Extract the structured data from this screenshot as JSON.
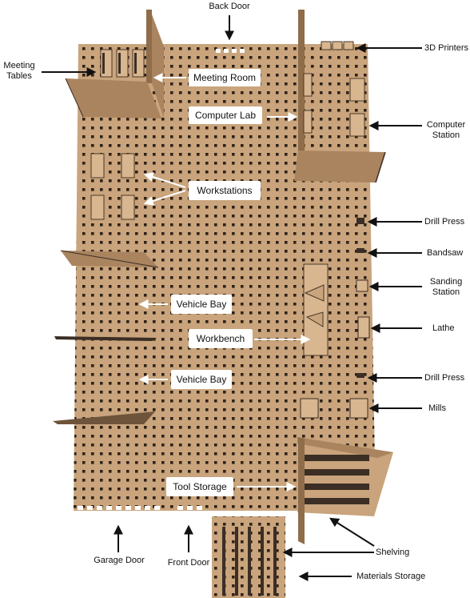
{
  "labels": {
    "back_door": "Back Door",
    "printers_3d": "3D Printers",
    "meeting_tables_line1": "Meeting",
    "meeting_tables_line2": "Tables",
    "computer_station_line1": "Computer",
    "computer_station_line2": "Station",
    "drill_press_top": "Drill Press",
    "bandsaw": "Bandsaw",
    "sanding_line1": "Sanding",
    "sanding_line2": "Station",
    "lathe": "Lathe",
    "drill_press_bottom": "Drill Press",
    "mills": "Mills",
    "shelving": "Shelving",
    "materials_storage": "Materials Storage",
    "garage_door": "Garage Door",
    "front_door": "Front Door"
  },
  "boxes": {
    "meeting_room": "Meeting Room",
    "computer_lab": "Computer Lab",
    "workstations": "Workstations",
    "vehicle_bay_top": "Vehicle Bay",
    "workbench": "Workbench",
    "vehicle_bay_bottom": "Vehicle Bay",
    "tool_storage": "Tool Storage"
  },
  "colors": {
    "board": "#c9a47c",
    "wall": "#a9845f",
    "wall_dark": "#3b2e24",
    "hole": "#2e2219",
    "arrow_white": "#ffffff",
    "arrow_black": "#111111"
  }
}
